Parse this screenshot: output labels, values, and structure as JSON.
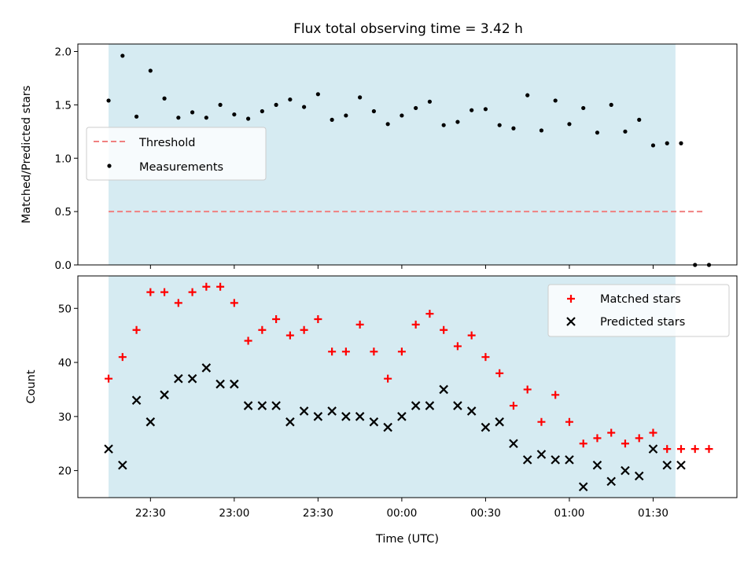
{
  "colors": {
    "span": "#add8e6",
    "threshold": "#f08080",
    "matched": "#ff0000",
    "predicted": "#000000",
    "measurement": "#000000"
  },
  "chart_data": [
    {
      "type": "scatter",
      "title": "Flux total observing time = 3.42 h",
      "xlabel": "",
      "ylabel": "Matched/Predicted stars",
      "ylim": [
        0.0,
        2.07
      ],
      "yticks": [
        0.0,
        0.5,
        1.0,
        1.5,
        2.0
      ],
      "ytick_labels": [
        "0.0",
        "0.5",
        "1.0",
        "1.5",
        "2.0"
      ],
      "shaded_span": {
        "from": "22:15",
        "to": "01:38"
      },
      "threshold": {
        "name": "Threshold",
        "value": 0.5,
        "from": "22:15",
        "to": "01:48"
      },
      "legend": {
        "placement": "center-left",
        "entries": [
          "Threshold",
          "Measurements"
        ]
      },
      "series": [
        {
          "name": "Measurements",
          "x": [
            "22:15",
            "22:20",
            "22:25",
            "22:30",
            "22:35",
            "22:40",
            "22:45",
            "22:50",
            "22:55",
            "23:00",
            "23:05",
            "23:10",
            "23:15",
            "23:20",
            "23:25",
            "23:30",
            "23:35",
            "23:40",
            "23:45",
            "23:50",
            "23:55",
            "00:00",
            "00:05",
            "00:10",
            "00:15",
            "00:20",
            "00:25",
            "00:30",
            "00:35",
            "00:40",
            "00:45",
            "00:50",
            "00:55",
            "01:00",
            "01:05",
            "01:10",
            "01:15",
            "01:20",
            "01:25",
            "01:30",
            "01:35",
            "01:40",
            "01:45"
          ],
          "y": [
            1.54,
            1.96,
            1.39,
            1.82,
            1.56,
            1.38,
            1.43,
            1.38,
            1.5,
            1.41,
            1.37,
            1.44,
            1.5,
            1.55,
            1.48,
            1.6,
            1.36,
            1.4,
            1.57,
            1.44,
            1.32,
            1.4,
            1.47,
            1.53,
            1.31,
            1.34,
            1.45,
            1.46,
            1.31,
            1.28,
            1.59,
            1.26,
            1.54,
            1.32,
            1.47,
            1.24,
            1.5,
            1.25,
            1.36,
            1.12,
            1.14,
            1.14,
            0.0
          ]
        },
        {
          "name": "",
          "x": [
            "01:50"
          ],
          "y": [
            0.0
          ]
        }
      ]
    },
    {
      "type": "scatter",
      "title": "",
      "xlabel": "Time (UTC)",
      "ylabel": "Count",
      "ylim": [
        15,
        56
      ],
      "yticks": [
        20,
        30,
        40,
        50
      ],
      "ytick_labels": [
        "20",
        "30",
        "40",
        "50"
      ],
      "xlim": [
        "22:04",
        "02:00"
      ],
      "xticks": [
        "22:30",
        "23:00",
        "23:30",
        "00:00",
        "00:30",
        "01:00",
        "01:30"
      ],
      "xtick_labels": [
        "22:30",
        "23:00",
        "23:30",
        "00:00",
        "00:30",
        "01:00",
        "01:30"
      ],
      "shaded_span": {
        "from": "22:15",
        "to": "01:38"
      },
      "legend": {
        "placement": "top-right",
        "entries": [
          "Matched stars",
          "Predicted stars"
        ]
      },
      "series": [
        {
          "name": "Matched stars",
          "marker": "+",
          "x": [
            "22:15",
            "22:20",
            "22:25",
            "22:30",
            "22:35",
            "22:40",
            "22:45",
            "22:50",
            "22:55",
            "23:00",
            "23:05",
            "23:10",
            "23:15",
            "23:20",
            "23:25",
            "23:30",
            "23:35",
            "23:40",
            "23:45",
            "23:50",
            "23:55",
            "00:00",
            "00:05",
            "00:10",
            "00:15",
            "00:20",
            "00:25",
            "00:30",
            "00:35",
            "00:40",
            "00:45",
            "00:50",
            "00:55",
            "01:00",
            "01:05",
            "01:10",
            "01:15",
            "01:20",
            "01:25",
            "01:30",
            "01:35",
            "01:40",
            "01:45",
            "01:50"
          ],
          "y": [
            37,
            41,
            46,
            53,
            53,
            51,
            53,
            54,
            54,
            51,
            44,
            46,
            48,
            45,
            46,
            48,
            42,
            42,
            47,
            42,
            37,
            42,
            47,
            49,
            46,
            43,
            45,
            41,
            38,
            32,
            35,
            29,
            34,
            29,
            25,
            26,
            27,
            25,
            26,
            27,
            24,
            24,
            24,
            24
          ]
        },
        {
          "name": "Predicted stars",
          "marker": "x",
          "x": [
            "22:15",
            "22:20",
            "22:25",
            "22:30",
            "22:35",
            "22:40",
            "22:45",
            "22:50",
            "22:55",
            "23:00",
            "23:05",
            "23:10",
            "23:15",
            "23:20",
            "23:25",
            "23:30",
            "23:35",
            "23:40",
            "23:45",
            "23:50",
            "23:55",
            "00:00",
            "00:05",
            "00:10",
            "00:15",
            "00:20",
            "00:25",
            "00:30",
            "00:35",
            "00:40",
            "00:45",
            "00:50",
            "00:55",
            "01:00",
            "01:05",
            "01:10",
            "01:15",
            "01:20",
            "01:25",
            "01:30",
            "01:35",
            "01:40"
          ],
          "y": [
            24,
            21,
            33,
            29,
            34,
            37,
            37,
            39,
            36,
            36,
            32,
            32,
            32,
            29,
            31,
            30,
            31,
            30,
            30,
            29,
            28,
            30,
            32,
            32,
            35,
            32,
            31,
            28,
            29,
            25,
            22,
            23,
            22,
            22,
            17,
            21,
            18,
            20,
            19,
            24,
            21,
            21
          ]
        }
      ]
    }
  ]
}
